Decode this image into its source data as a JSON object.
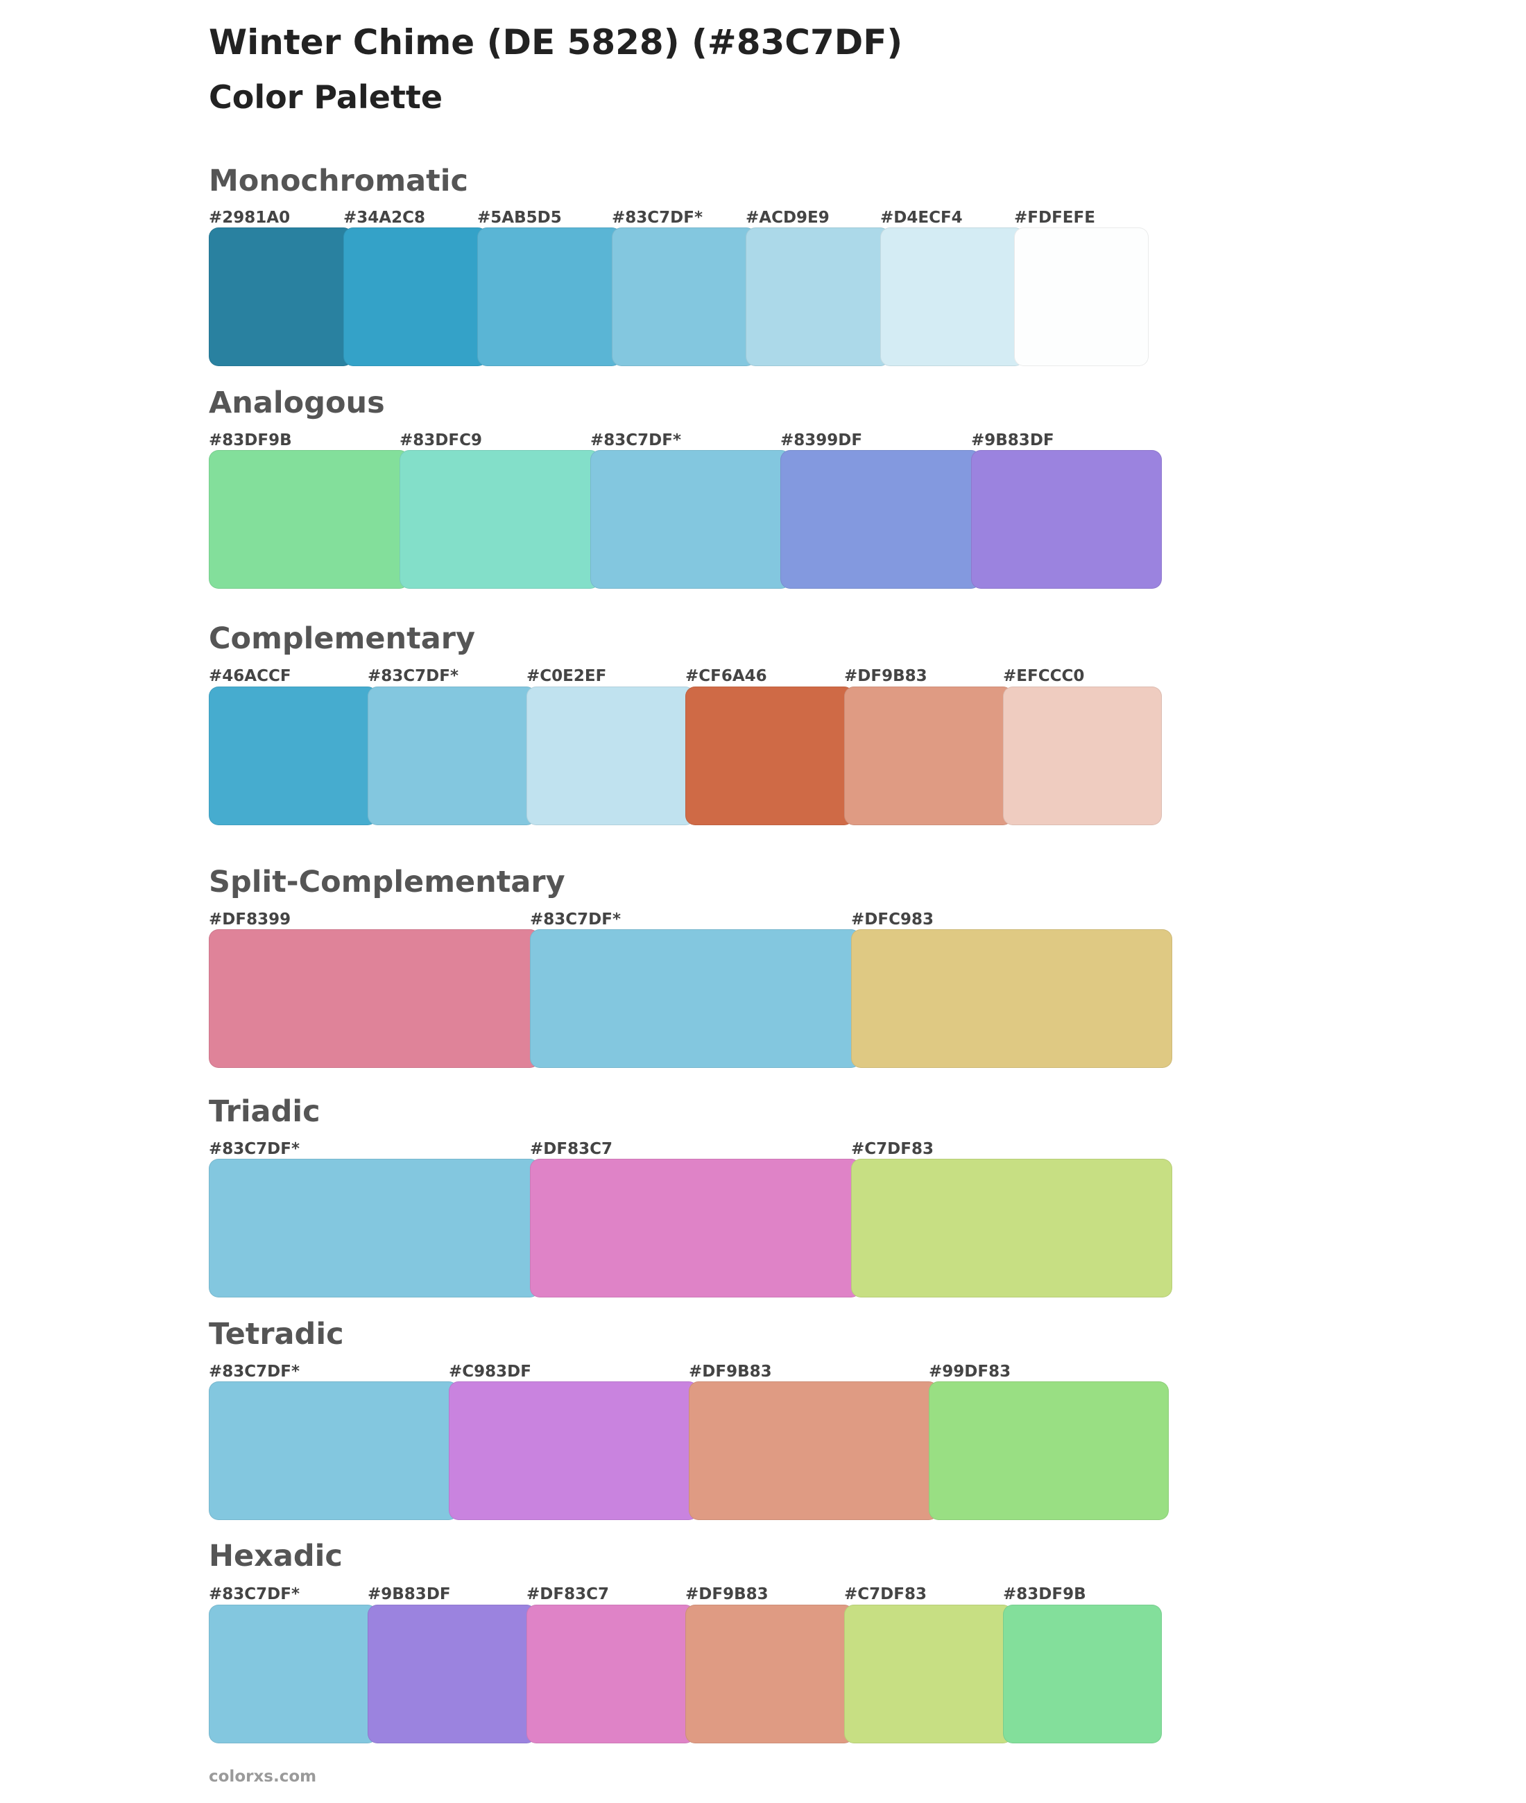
{
  "title": "Winter Chime (DE 5828) (#83C7DF)",
  "subtitle": "Color Palette",
  "footer": "colorxs.com",
  "sections": [
    {
      "name": "monochromatic",
      "title": "Monochromatic",
      "swatches": [
        {
          "label": "#2981A0",
          "color": "#2981A0"
        },
        {
          "label": "#34A2C8",
          "color": "#34A2C8"
        },
        {
          "label": "#5AB5D5",
          "color": "#5AB5D5"
        },
        {
          "label": "#83C7DF*",
          "color": "#83C7DF"
        },
        {
          "label": "#ACD9E9",
          "color": "#ACD9E9"
        },
        {
          "label": "#D4ECF4",
          "color": "#D4ECF4"
        },
        {
          "label": "#FDFEFE",
          "color": "#FDFEFE"
        }
      ]
    },
    {
      "name": "analogous",
      "title": "Analogous",
      "swatches": [
        {
          "label": "#83DF9B",
          "color": "#83DF9B"
        },
        {
          "label": "#83DFC9",
          "color": "#83DFC9"
        },
        {
          "label": "#83C7DF*",
          "color": "#83C7DF"
        },
        {
          "label": "#8399DF",
          "color": "#8399DF"
        },
        {
          "label": "#9B83DF",
          "color": "#9B83DF"
        }
      ]
    },
    {
      "name": "complementary",
      "title": "Complementary",
      "swatches": [
        {
          "label": "#46ACCF",
          "color": "#46ACCF"
        },
        {
          "label": "#83C7DF*",
          "color": "#83C7DF"
        },
        {
          "label": "#C0E2EF",
          "color": "#C0E2EF"
        },
        {
          "label": "#CF6A46",
          "color": "#CF6A46"
        },
        {
          "label": "#DF9B83",
          "color": "#DF9B83"
        },
        {
          "label": "#EFCCC0",
          "color": "#EFCCC0"
        }
      ]
    },
    {
      "name": "split-complementary",
      "title": "Split-Complementary",
      "swatches": [
        {
          "label": "#DF8399",
          "color": "#DF8399"
        },
        {
          "label": "#83C7DF*",
          "color": "#83C7DF"
        },
        {
          "label": "#DFC983",
          "color": "#DFC983"
        }
      ]
    },
    {
      "name": "triadic",
      "title": "Triadic",
      "swatches": [
        {
          "label": "#83C7DF*",
          "color": "#83C7DF"
        },
        {
          "label": "#DF83C7",
          "color": "#DF83C7"
        },
        {
          "label": "#C7DF83",
          "color": "#C7DF83"
        }
      ]
    },
    {
      "name": "tetradic",
      "title": "Tetradic",
      "swatches": [
        {
          "label": "#83C7DF*",
          "color": "#83C7DF"
        },
        {
          "label": "#C983DF",
          "color": "#C983DF"
        },
        {
          "label": "#DF9B83",
          "color": "#DF9B83"
        },
        {
          "label": "#99DF83",
          "color": "#99DF83"
        }
      ]
    },
    {
      "name": "hexadic",
      "title": "Hexadic",
      "swatches": [
        {
          "label": "#83C7DF*",
          "color": "#83C7DF"
        },
        {
          "label": "#9B83DF",
          "color": "#9B83DF"
        },
        {
          "label": "#DF83C7",
          "color": "#DF83C7"
        },
        {
          "label": "#DF9B83",
          "color": "#DF9B83"
        },
        {
          "label": "#C7DF83",
          "color": "#C7DF83"
        },
        {
          "label": "#83DF9B",
          "color": "#83DF9B"
        }
      ]
    }
  ]
}
